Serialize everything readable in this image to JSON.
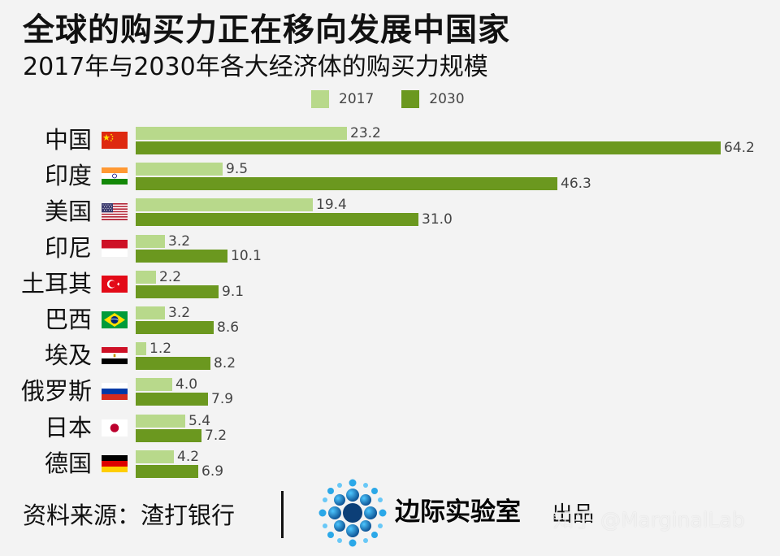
{
  "header": {
    "title": "全球的购买力正在移向发展中国家",
    "subtitle": "2017年与2030年各大经济体的购买力规模"
  },
  "chart_data": {
    "type": "bar",
    "orientation": "horizontal",
    "categories": [
      "中国",
      "印度",
      "美国",
      "印尼",
      "土耳其",
      "巴西",
      "埃及",
      "俄罗斯",
      "日本",
      "德国"
    ],
    "series": [
      {
        "name": "2017",
        "values": [
          23.2,
          9.5,
          19.4,
          3.2,
          2.2,
          3.2,
          1.2,
          4.0,
          5.4,
          4.2
        ],
        "labels": [
          "23.2",
          "9.5",
          "19.4",
          "3.2",
          "2.2",
          "3.2",
          "1.2",
          "4.0",
          "5.4",
          "4.2"
        ],
        "color": "#b8d98b"
      },
      {
        "name": "2030",
        "values": [
          64.2,
          46.3,
          31.0,
          10.1,
          9.1,
          8.6,
          8.2,
          7.9,
          7.2,
          6.9
        ],
        "labels": [
          "64.2",
          "46.3",
          "31.0",
          "10.1",
          "9.1",
          "8.6",
          "8.2",
          "7.9",
          "7.2",
          "6.9"
        ],
        "color": "#6b981f"
      }
    ],
    "xlim": [
      0,
      64.2
    ],
    "grid": false,
    "legend_position": "top-center",
    "title": "全球的购买力正在移向发展中国家",
    "subtitle": "2017年与2030年各大经济体的购买力规模",
    "xlabel": "",
    "ylabel": ""
  },
  "flags": [
    {
      "country": "中国",
      "icon": "china-flag-icon"
    },
    {
      "country": "印度",
      "icon": "india-flag-icon"
    },
    {
      "country": "美国",
      "icon": "usa-flag-icon"
    },
    {
      "country": "印尼",
      "icon": "indonesia-flag-icon"
    },
    {
      "country": "土耳其",
      "icon": "turkey-flag-icon"
    },
    {
      "country": "巴西",
      "icon": "brazil-flag-icon"
    },
    {
      "country": "埃及",
      "icon": "egypt-flag-icon"
    },
    {
      "country": "俄罗斯",
      "icon": "russia-flag-icon"
    },
    {
      "country": "日本",
      "icon": "japan-flag-icon"
    },
    {
      "country": "德国",
      "icon": "germany-flag-icon"
    }
  ],
  "footer": {
    "source": "资料来源：渣打银行",
    "brand": "边际实验室",
    "produced": "出品",
    "logo_icon": "dots-logo-icon"
  },
  "watermark": {
    "text": "知乎 @MarginalLab"
  }
}
